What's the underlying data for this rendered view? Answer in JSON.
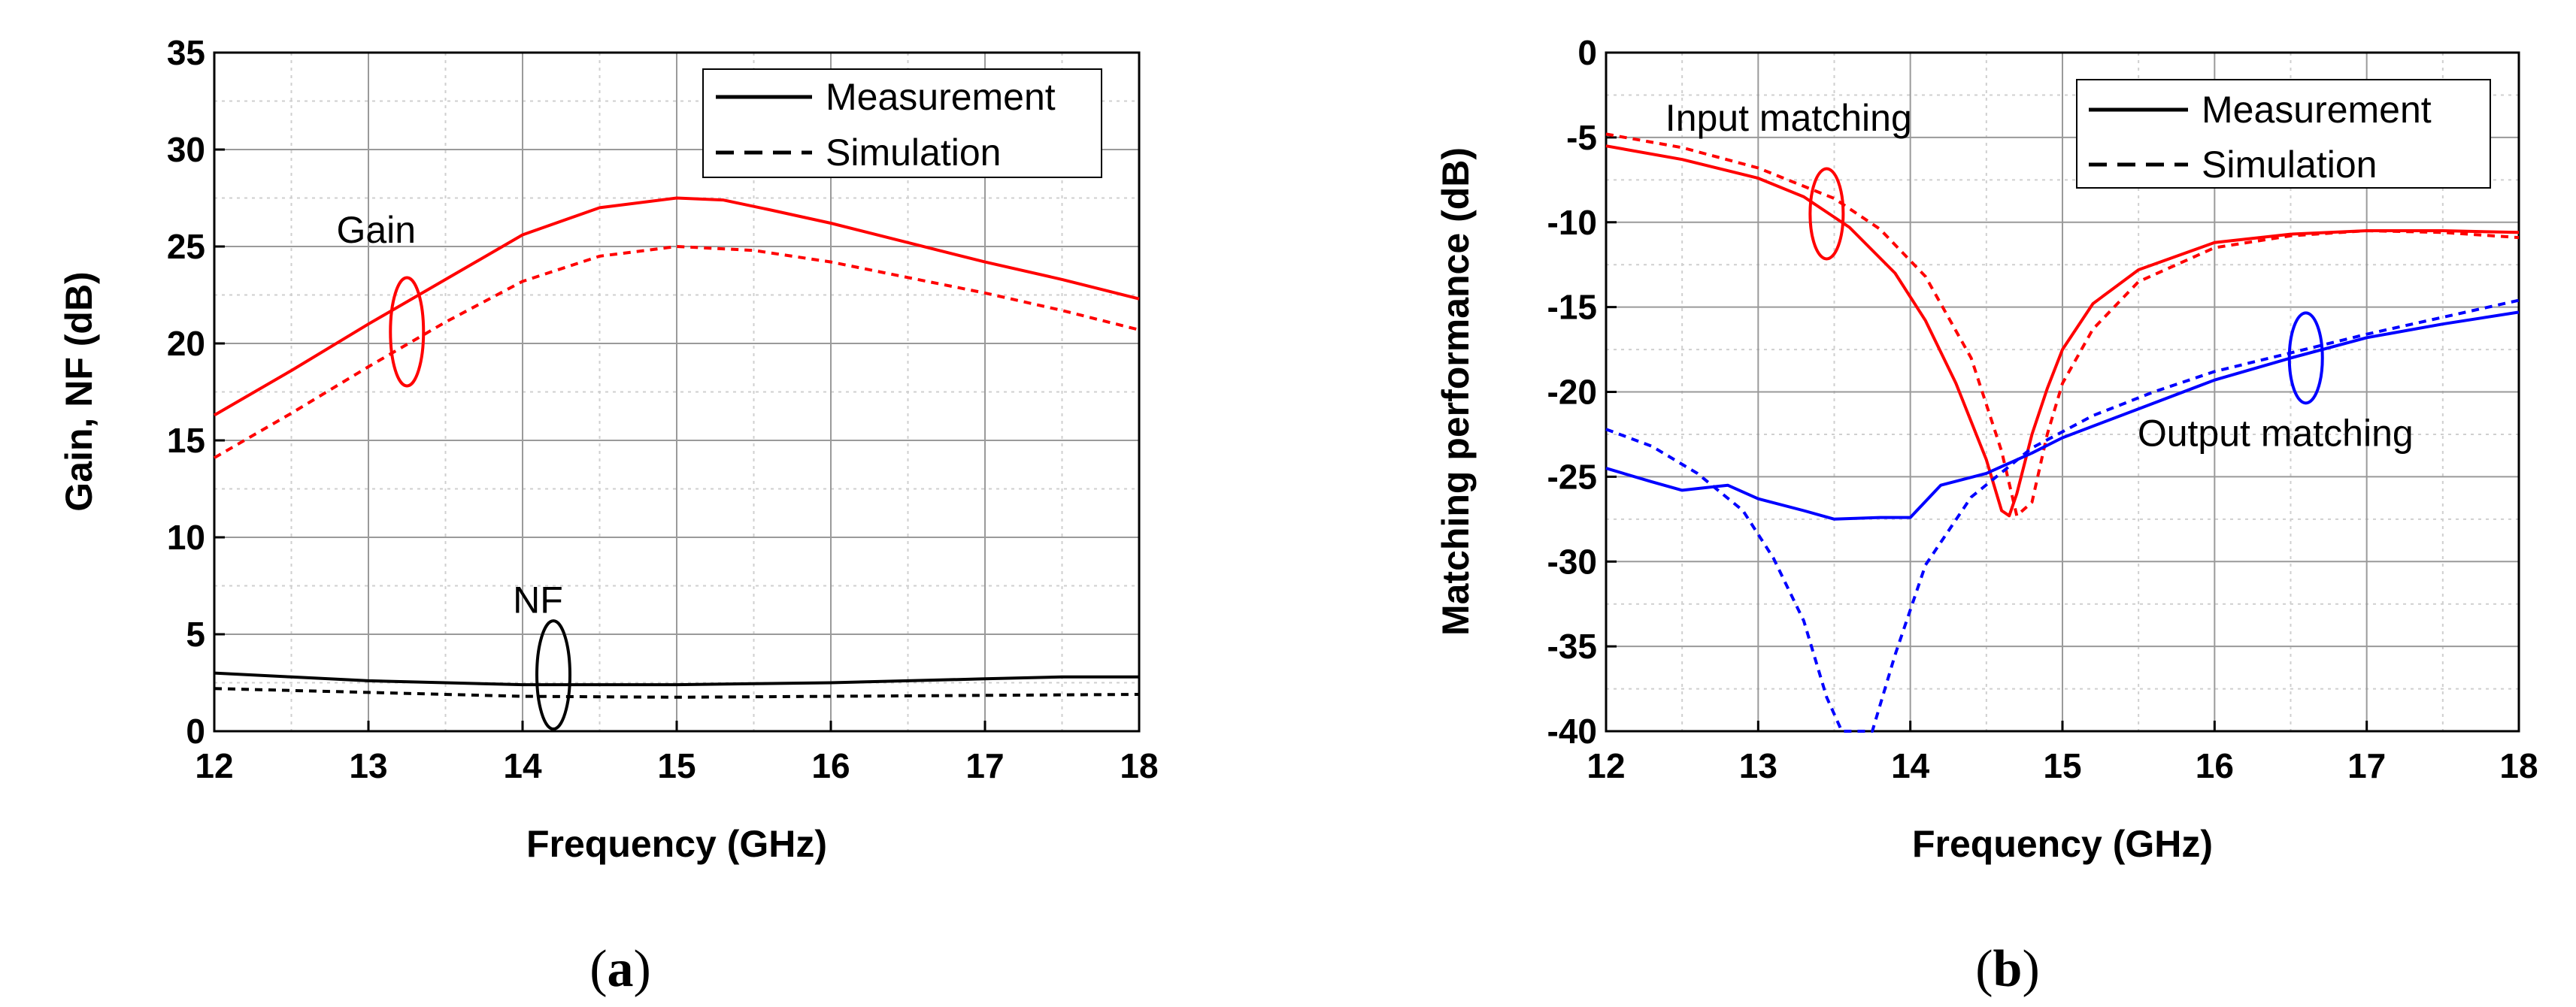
{
  "chart_data": [
    {
      "type": "line",
      "panel": "a",
      "caption": "(a)",
      "xlabel": "Frequency (GHz)",
      "ylabel": "Gain, NF (dB)",
      "xlim": [
        12,
        18
      ],
      "ylim": [
        0,
        35
      ],
      "xticks": [
        "12",
        "13",
        "14",
        "15",
        "16",
        "17",
        "18"
      ],
      "yticks": [
        "0",
        "5",
        "10",
        "15",
        "20",
        "25",
        "30",
        "35"
      ],
      "legend": {
        "position": "top-right",
        "entries": [
          {
            "label": "Measurement",
            "style": "solid"
          },
          {
            "label": "Simulation",
            "style": "dashed"
          }
        ]
      },
      "annotations": [
        {
          "text": "Gain",
          "at": [
            13.25,
            20.6
          ],
          "label_at": [
            13.05,
            25.2
          ],
          "ellipse_color": "#ff0000"
        },
        {
          "text": "NF",
          "at": [
            14.2,
            2.9
          ],
          "label_at": [
            14.1,
            6.1
          ],
          "ellipse_color": "#000000"
        }
      ],
      "series": [
        {
          "name": "Gain measurement",
          "color": "#ff0000",
          "style": "solid",
          "x": [
            12.0,
            12.5,
            13.0,
            13.5,
            14.0,
            14.5,
            15.0,
            15.3,
            15.6,
            16.0,
            16.5,
            17.0,
            17.5,
            18.0
          ],
          "y": [
            16.3,
            18.6,
            21.0,
            23.3,
            25.6,
            27.0,
            27.5,
            27.4,
            26.9,
            26.2,
            25.2,
            24.2,
            23.3,
            22.3
          ]
        },
        {
          "name": "Gain simulation",
          "color": "#ff0000",
          "style": "dashed",
          "x": [
            12.0,
            12.5,
            13.0,
            13.5,
            14.0,
            14.5,
            15.0,
            15.5,
            16.0,
            16.5,
            17.0,
            17.5,
            18.0
          ],
          "y": [
            14.1,
            16.4,
            18.8,
            21.1,
            23.2,
            24.5,
            25.0,
            24.8,
            24.2,
            23.4,
            22.6,
            21.7,
            20.7
          ]
        },
        {
          "name": "NF measurement",
          "color": "#000000",
          "style": "solid",
          "x": [
            12.0,
            12.5,
            13.0,
            13.5,
            14.0,
            14.5,
            15.0,
            15.5,
            16.0,
            16.5,
            17.0,
            17.5,
            18.0
          ],
          "y": [
            3.0,
            2.8,
            2.6,
            2.5,
            2.4,
            2.4,
            2.4,
            2.45,
            2.5,
            2.6,
            2.7,
            2.8,
            2.8
          ]
        },
        {
          "name": "NF simulation",
          "color": "#000000",
          "style": "dashed",
          "x": [
            12.0,
            13.0,
            14.0,
            15.0,
            16.0,
            17.0,
            18.0
          ],
          "y": [
            2.2,
            2.0,
            1.8,
            1.75,
            1.8,
            1.85,
            1.9
          ]
        }
      ]
    },
    {
      "type": "line",
      "panel": "b",
      "caption": "(b)",
      "xlabel": "Frequency (GHz)",
      "ylabel": "Matching performance (dB)",
      "xlim": [
        12,
        18
      ],
      "ylim": [
        -40,
        0
      ],
      "xticks": [
        "12",
        "13",
        "14",
        "15",
        "16",
        "17",
        "18"
      ],
      "yticks": [
        "-40",
        "-35",
        "-30",
        "-25",
        "-20",
        "-15",
        "-10",
        "-5",
        "0"
      ],
      "legend": {
        "position": "top-right",
        "entries": [
          {
            "label": "Measurement",
            "style": "solid"
          },
          {
            "label": "Simulation",
            "style": "dashed"
          }
        ]
      },
      "annotations": [
        {
          "text": "Input matching",
          "at": [
            13.45,
            -9.5
          ],
          "label_at": [
            13.2,
            -4.6
          ],
          "ellipse_color": "#ff0000"
        },
        {
          "text": "Output matching",
          "at": [
            16.6,
            -18.0
          ],
          "label_at": [
            16.4,
            -23.2
          ],
          "ellipse_color": "#0000ff"
        }
      ],
      "series": [
        {
          "name": "Input matching measurement",
          "color": "#ff0000",
          "style": "solid",
          "x": [
            12.0,
            12.5,
            13.0,
            13.3,
            13.6,
            13.9,
            14.1,
            14.3,
            14.5,
            14.6,
            14.65,
            14.7,
            14.8,
            14.9,
            15.0,
            15.2,
            15.5,
            16.0,
            16.5,
            17.0,
            17.5,
            18.0
          ],
          "y": [
            -5.5,
            -6.3,
            -7.4,
            -8.5,
            -10.3,
            -13.0,
            -15.8,
            -19.5,
            -24.0,
            -27.0,
            -27.3,
            -26.0,
            -22.5,
            -19.8,
            -17.5,
            -14.8,
            -12.8,
            -11.2,
            -10.7,
            -10.5,
            -10.5,
            -10.6
          ]
        },
        {
          "name": "Input matching simulation",
          "color": "#ff0000",
          "style": "dashed",
          "x": [
            12.0,
            12.5,
            13.0,
            13.5,
            13.8,
            14.1,
            14.4,
            14.6,
            14.7,
            14.8,
            14.9,
            15.0,
            15.2,
            15.5,
            16.0,
            16.5,
            17.0,
            17.5,
            18.0
          ],
          "y": [
            -4.8,
            -5.6,
            -6.8,
            -8.6,
            -10.4,
            -13.2,
            -18.0,
            -23.5,
            -27.3,
            -26.5,
            -22.5,
            -19.5,
            -16.3,
            -13.5,
            -11.5,
            -10.8,
            -10.5,
            -10.6,
            -10.9
          ]
        },
        {
          "name": "Output matching measurement",
          "color": "#0000ff",
          "style": "solid",
          "x": [
            12.0,
            12.3,
            12.5,
            12.8,
            13.0,
            13.3,
            13.5,
            13.8,
            14.0,
            14.2,
            14.5,
            14.8,
            15.0,
            15.5,
            16.0,
            16.5,
            17.0,
            17.5,
            18.0
          ],
          "y": [
            -24.5,
            -25.3,
            -25.8,
            -25.5,
            -26.3,
            -27.0,
            -27.5,
            -27.4,
            -27.4,
            -25.5,
            -24.8,
            -23.6,
            -22.7,
            -21.0,
            -19.3,
            -18.0,
            -16.8,
            -16.0,
            -15.3
          ]
        },
        {
          "name": "Output matching simulation",
          "color": "#0000ff",
          "style": "dashed",
          "x": [
            12.0,
            12.3,
            12.6,
            12.9,
            13.1,
            13.3,
            13.45,
            13.55,
            13.75,
            13.9,
            14.1,
            14.4,
            14.8,
            15.2,
            15.6,
            16.0,
            16.5,
            17.0,
            17.5,
            18.0
          ],
          "y": [
            -22.2,
            -23.2,
            -24.8,
            -27.0,
            -29.8,
            -33.5,
            -38.0,
            -40.0,
            -40.0,
            -35.5,
            -30.2,
            -26.2,
            -23.3,
            -21.4,
            -20.0,
            -18.8,
            -17.7,
            -16.6,
            -15.6,
            -14.6
          ]
        }
      ]
    }
  ]
}
